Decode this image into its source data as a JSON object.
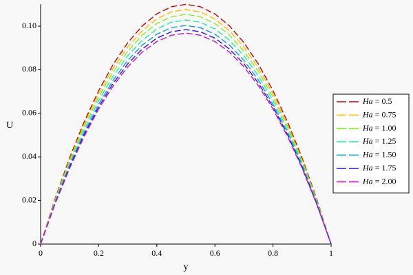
{
  "chart_data": {
    "type": "line",
    "x_label": "y",
    "y_label": "U",
    "x": [
      0,
      0.05,
      0.1,
      0.15,
      0.2,
      0.25,
      0.3,
      0.35,
      0.4,
      0.45,
      0.5,
      0.55,
      0.6,
      0.65,
      0.7,
      0.75,
      0.8,
      0.85,
      0.9,
      0.95,
      1
    ],
    "series": [
      {
        "name": "Ha = 0.5",
        "color": "#cc0000",
        "values": [
          0,
          0.0209,
          0.0396,
          0.0561,
          0.0704,
          0.0825,
          0.0924,
          0.1001,
          0.1056,
          0.1089,
          0.11,
          0.1089,
          0.1056,
          0.1001,
          0.0924,
          0.0825,
          0.0704,
          0.0561,
          0.0396,
          0.0209,
          0
        ]
      },
      {
        "name": "Ha = 0.75",
        "color": "#ffbb00",
        "values": [
          0,
          0.0204,
          0.0387,
          0.0549,
          0.0689,
          0.0807,
          0.0904,
          0.0979,
          0.1033,
          0.1065,
          0.1076,
          0.1065,
          0.1033,
          0.0979,
          0.0904,
          0.0807,
          0.0689,
          0.0549,
          0.0387,
          0.0204,
          0
        ]
      },
      {
        "name": "Ha = 1.00",
        "color": "#88ee22",
        "values": [
          0,
          0.02,
          0.0379,
          0.0538,
          0.0675,
          0.0791,
          0.0885,
          0.0959,
          0.1012,
          0.1043,
          0.1054,
          0.1043,
          0.1012,
          0.0959,
          0.0885,
          0.0791,
          0.0675,
          0.0538,
          0.0379,
          0.02,
          0
        ]
      },
      {
        "name": "Ha = 1.25",
        "color": "#22eeaa",
        "values": [
          0,
          0.0195,
          0.037,
          0.0524,
          0.0658,
          0.0771,
          0.0864,
          0.0935,
          0.0987,
          0.1018,
          0.1028,
          0.1018,
          0.0987,
          0.0935,
          0.0864,
          0.0771,
          0.0658,
          0.0524,
          0.037,
          0.0195,
          0
        ]
      },
      {
        "name": "Ha = 1.50",
        "color": "#1199dd",
        "values": [
          0,
          0.0191,
          0.0361,
          0.0512,
          0.0642,
          0.0752,
          0.0843,
          0.0913,
          0.0963,
          0.0993,
          0.1003,
          0.0993,
          0.0963,
          0.0913,
          0.0843,
          0.0752,
          0.0642,
          0.0512,
          0.0361,
          0.0191,
          0
        ]
      },
      {
        "name": "Ha = 1.75",
        "color": "#3311dd",
        "values": [
          0,
          0.0187,
          0.0354,
          0.0502,
          0.063,
          0.0738,
          0.0827,
          0.0895,
          0.0945,
          0.0974,
          0.0984,
          0.0974,
          0.0945,
          0.0895,
          0.0827,
          0.0738,
          0.063,
          0.0502,
          0.0354,
          0.0187,
          0
        ]
      },
      {
        "name": "Ha = 2.00",
        "color": "#cc11cc",
        "values": [
          0,
          0.0184,
          0.0348,
          0.0494,
          0.062,
          0.0726,
          0.0813,
          0.0881,
          0.0929,
          0.0958,
          0.0968,
          0.0958,
          0.0929,
          0.0881,
          0.0813,
          0.0726,
          0.062,
          0.0494,
          0.0348,
          0.0184,
          0
        ]
      }
    ],
    "xlim": [
      0,
      1
    ],
    "xticks": [
      0,
      0.2,
      0.4,
      0.6,
      0.8,
      1
    ],
    "ylim": [
      0,
      0.11
    ],
    "yticks": [
      0,
      0.02,
      0.04,
      0.06,
      0.08,
      {
        "value": 0.1,
        "label": "0.10"
      }
    ],
    "legend": "right"
  }
}
